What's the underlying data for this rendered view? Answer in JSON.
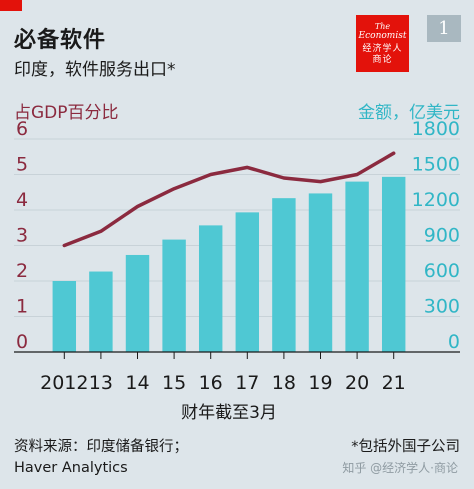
{
  "header": {
    "title": "必备软件",
    "subtitle": "印度，软件服务出口*",
    "chart_number": "1",
    "logo": {
      "line1": "The",
      "line2": "Economist",
      "line3": "经济学人",
      "line4": "商论"
    }
  },
  "colors": {
    "accent_red": "#e3120b",
    "bar": "#4fc8d3",
    "line": "#8b2a3f",
    "left_axis_text": "#8b2a3f",
    "right_axis_text": "#31b6c6",
    "background": "#dde5ea",
    "gridline": "#c8d2d8",
    "logo_bg": "#e3120b"
  },
  "chart_data": {
    "type": "bar+line",
    "categories": [
      "2012",
      "13",
      "14",
      "15",
      "16",
      "17",
      "18",
      "19",
      "20",
      "21"
    ],
    "xlabel": "财年截至3月",
    "left_axis": {
      "label": "占GDP百分比",
      "ylim": [
        0,
        6
      ],
      "ticks": [
        0,
        1,
        2,
        3,
        4,
        5,
        6
      ]
    },
    "right_axis": {
      "label": "金额，亿美元",
      "ylim": [
        0,
        1800
      ],
      "ticks": [
        0,
        300,
        600,
        900,
        1200,
        1500,
        1800
      ]
    },
    "series": [
      {
        "type": "bar",
        "axis": "right",
        "values": [
          600,
          680,
          820,
          950,
          1070,
          1180,
          1300,
          1340,
          1440,
          1480
        ]
      },
      {
        "type": "line",
        "axis": "left",
        "values": [
          3.0,
          3.4,
          4.1,
          4.6,
          5.0,
          5.2,
          4.9,
          4.8,
          5.0,
          5.6
        ]
      }
    ],
    "grid": true
  },
  "footer": {
    "source_line1": "资料来源：印度储备银行；",
    "source_line2": "Haver Analytics",
    "note": "*包括外国子公司",
    "watermark": "知乎 @经济学人·商论"
  }
}
